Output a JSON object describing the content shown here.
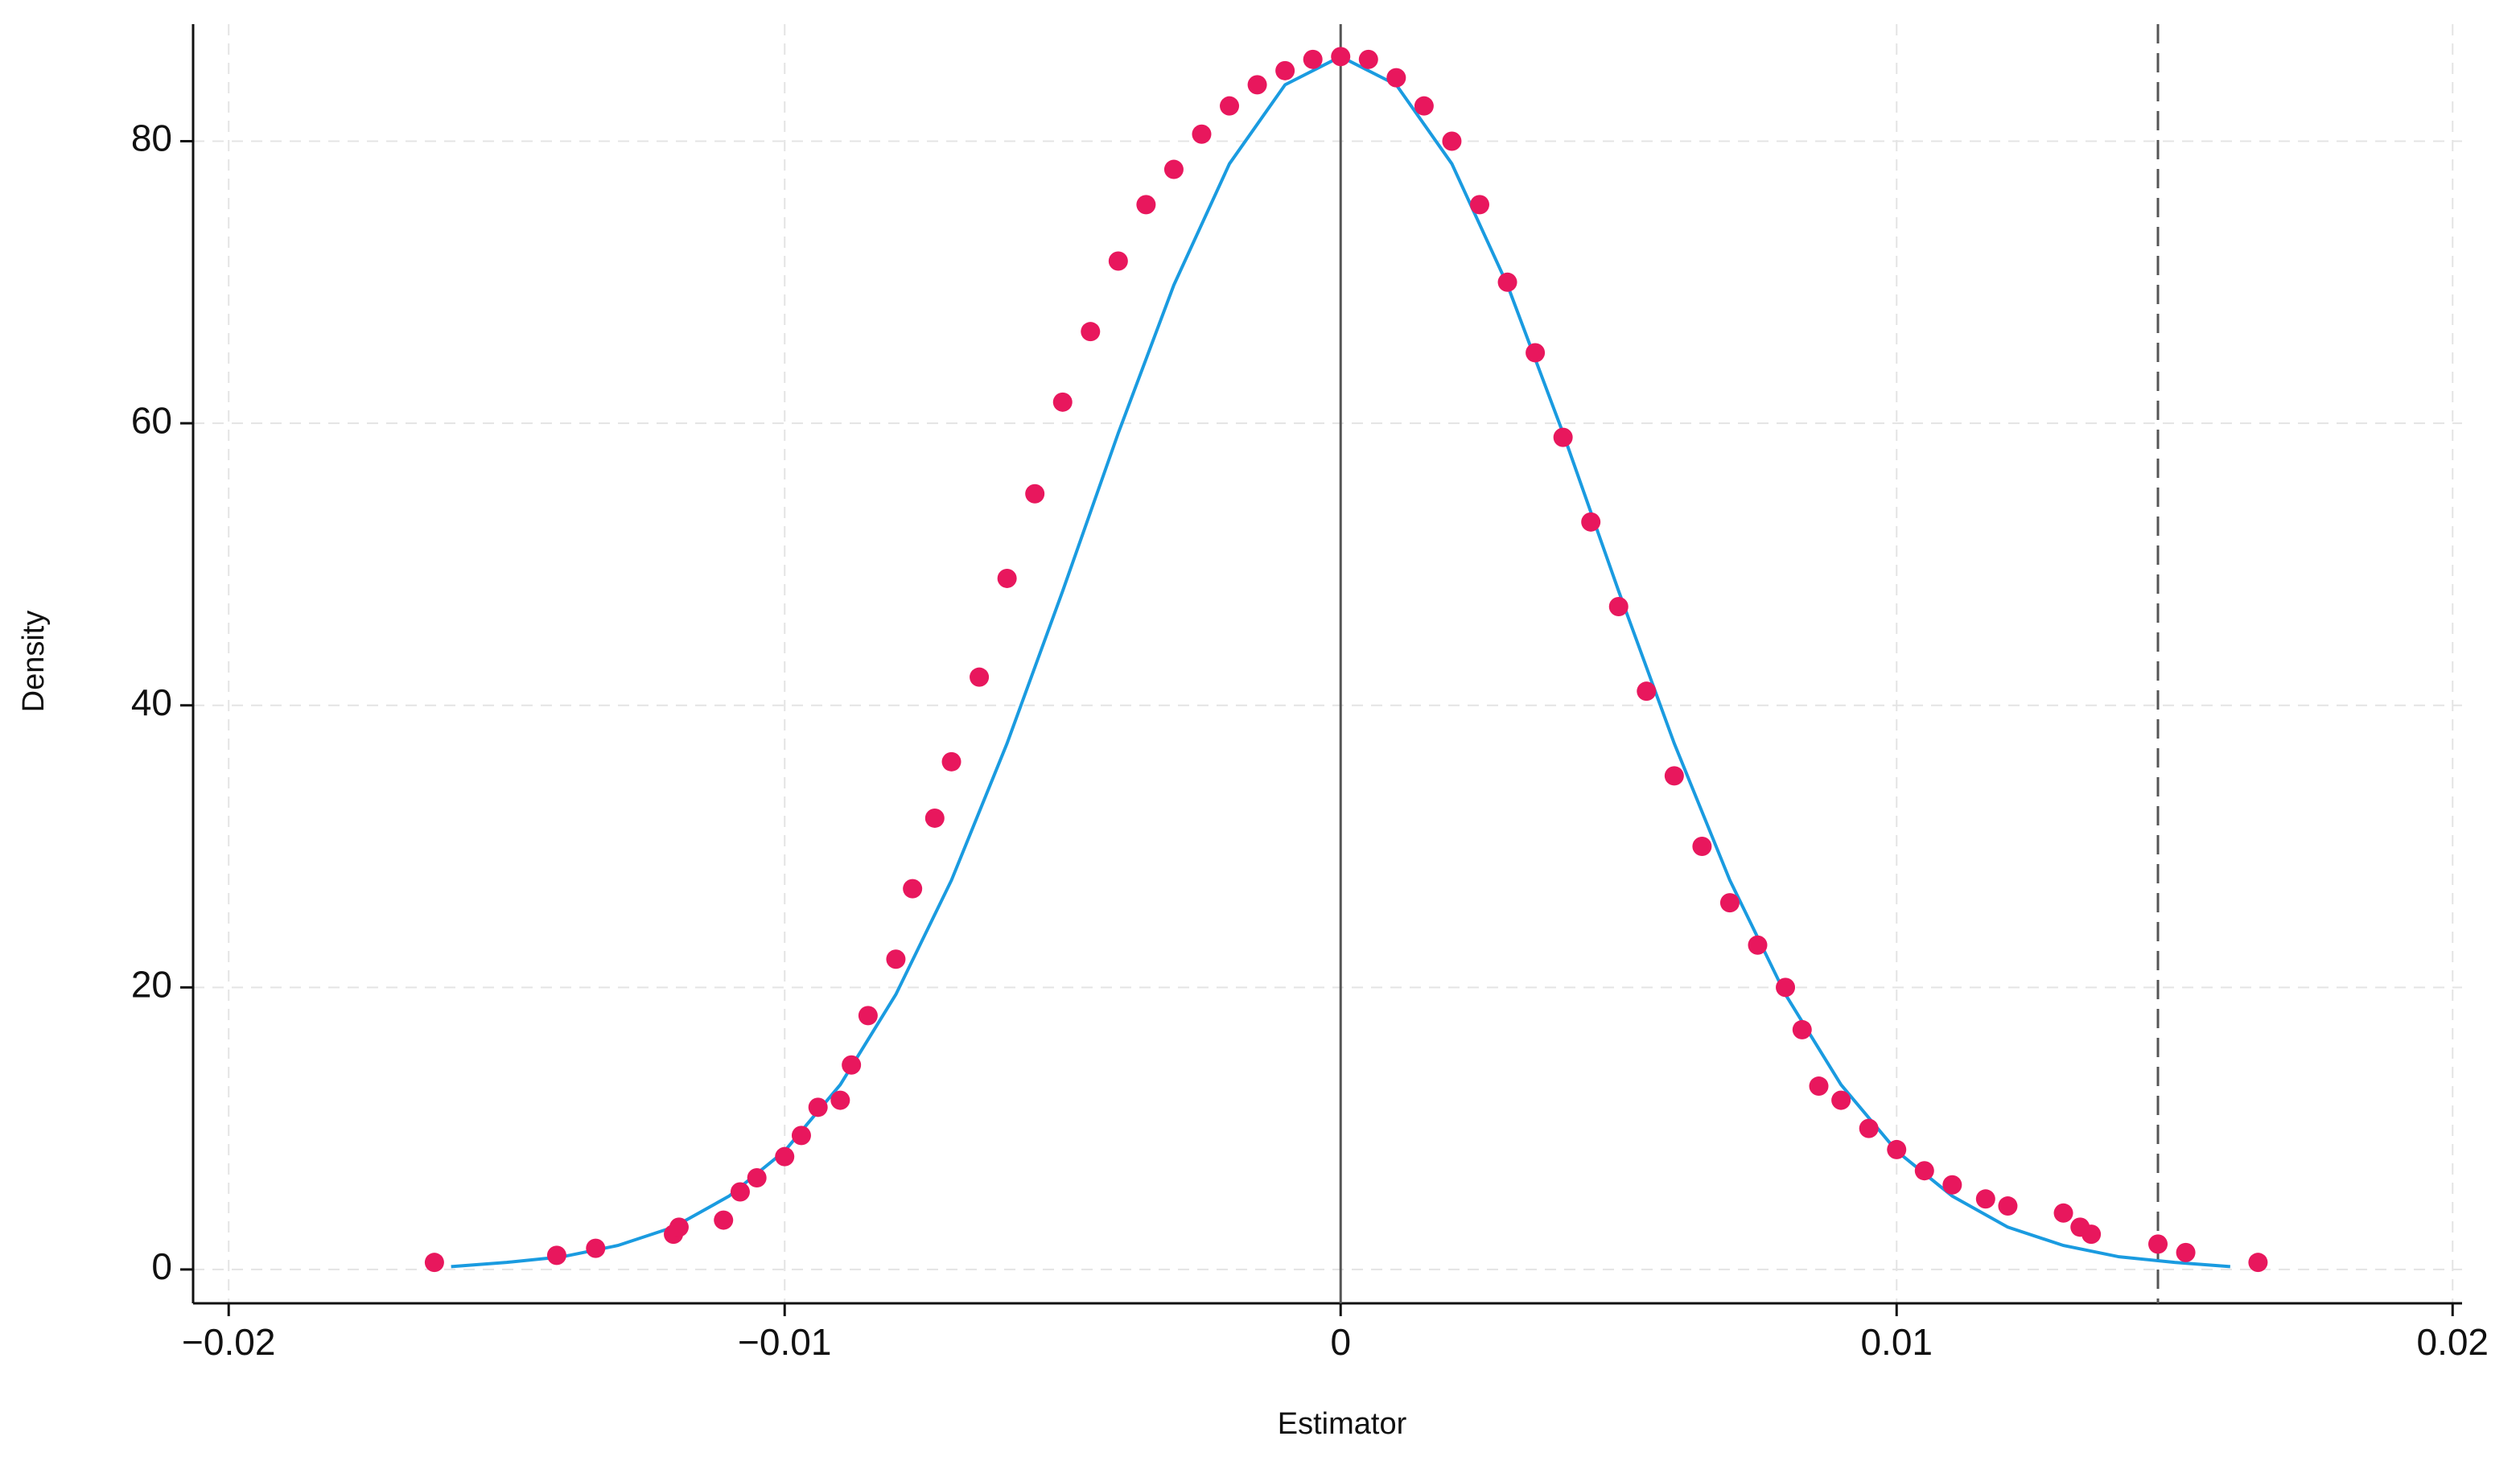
{
  "chart_data": {
    "type": "scatter",
    "x_label": "Estimator",
    "y_label": "Density",
    "xlim": [
      -0.02064,
      0.02017
    ],
    "ylim": [
      -2.4,
      88.3
    ],
    "xticks": [
      {
        "value": -0.02,
        "label": "−0.02"
      },
      {
        "value": -0.01,
        "label": "−0.01"
      },
      0,
      0.01,
      0.02
    ],
    "yticks": [
      0,
      20,
      40,
      60,
      80
    ],
    "grid": true,
    "vlines": [
      {
        "x": 0,
        "style": "solid",
        "color": "#555555"
      },
      {
        "x": 0.0147,
        "style": "dashed",
        "color": "#555555"
      }
    ],
    "series": [
      {
        "type": "line",
        "color": "#1a9be0",
        "x": [
          -0.016,
          -0.015,
          -0.014,
          -0.013,
          -0.012,
          -0.011,
          -0.01,
          -0.009,
          -0.008,
          -0.007,
          -0.006,
          -0.005,
          -0.004,
          -0.003,
          -0.002,
          -0.001,
          0,
          0.001,
          0.002,
          0.003,
          0.004,
          0.005,
          0.006,
          0.007,
          0.008,
          0.009,
          0.01,
          0.011,
          0.012,
          0.013,
          0.014,
          0.015,
          0.016
        ],
        "values": [
          0.2,
          0.5,
          0.9,
          1.7,
          3.0,
          5.2,
          8.4,
          13.1,
          19.5,
          27.6,
          37.3,
          48.1,
          59.3,
          69.8,
          78.4,
          84.0,
          86.0,
          84.0,
          78.4,
          69.8,
          59.3,
          48.1,
          37.3,
          27.6,
          19.5,
          13.1,
          8.4,
          5.2,
          3.0,
          1.7,
          0.9,
          0.5,
          0.2
        ]
      },
      {
        "type": "scatter",
        "color": "#e8175d",
        "x": [
          -0.0163,
          -0.0141,
          -0.0134,
          -0.012,
          -0.0119,
          -0.0111,
          -0.0108,
          -0.0105,
          -0.01,
          -0.0097,
          -0.0094,
          -0.009,
          -0.0088,
          -0.0085,
          -0.008,
          -0.0077,
          -0.0073,
          -0.007,
          -0.0065,
          -0.006,
          -0.0055,
          -0.005,
          -0.0045,
          -0.004,
          -0.0035,
          -0.003,
          -0.0025,
          -0.002,
          -0.0015,
          -0.001,
          -0.0005,
          0,
          0.0005,
          0.001,
          0.0015,
          0.002,
          0.0025,
          0.003,
          0.0035,
          0.004,
          0.0045,
          0.005,
          0.0055,
          0.006,
          0.0065,
          0.007,
          0.0075,
          0.008,
          0.0083,
          0.0086,
          0.009,
          0.0095,
          0.01,
          0.0105,
          0.011,
          0.0116,
          0.012,
          0.013,
          0.0133,
          0.0135,
          0.0147,
          0.0152,
          0.0165
        ],
        "values": [
          0.5,
          1.0,
          1.5,
          2.5,
          3.0,
          3.5,
          5.5,
          6.5,
          8.0,
          9.5,
          11.5,
          12.0,
          14.5,
          18.0,
          22.0,
          27.0,
          32.0,
          36.0,
          42.0,
          49.0,
          55.0,
          61.5,
          66.5,
          71.5,
          75.5,
          78.0,
          80.5,
          82.5,
          84.0,
          85.0,
          85.8,
          86.0,
          85.8,
          84.5,
          82.5,
          80.0,
          75.5,
          70.0,
          65.0,
          59.0,
          53.0,
          47.0,
          41.0,
          35.0,
          30.0,
          26.0,
          23.0,
          20.0,
          17.0,
          13.0,
          12.0,
          10.0,
          8.5,
          7.0,
          6.0,
          5.0,
          4.5,
          4.0,
          3.0,
          2.5,
          1.8,
          1.2,
          0.5
        ]
      }
    ]
  }
}
